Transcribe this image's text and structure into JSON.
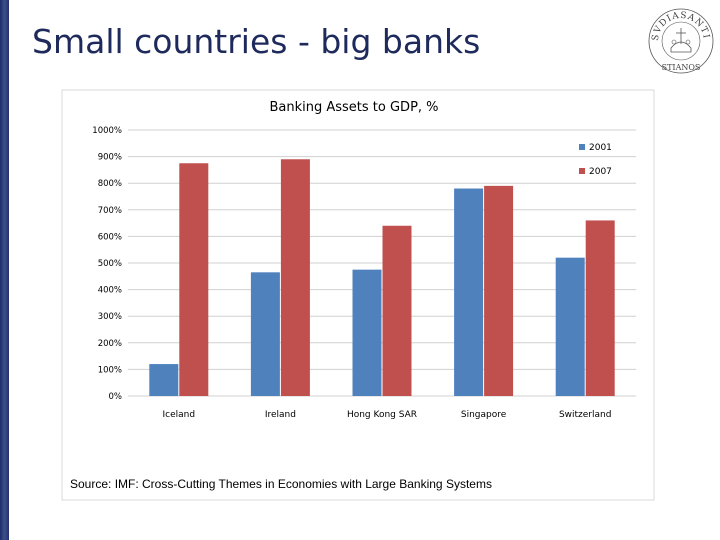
{
  "slide": {
    "title": "Small countries - big banks",
    "logo_text": "SVDIASANTI STIANOS"
  },
  "source_note": "Source: IMF: Cross-Cutting Themes in Economies with Large Banking Systems",
  "chart_data": {
    "type": "bar",
    "title": "Banking Assets to GDP, %",
    "xlabel": "",
    "ylabel": "",
    "categories": [
      "Iceland",
      "Ireland",
      "Hong Kong SAR",
      "Singapore",
      "Switzerland"
    ],
    "series": [
      {
        "name": "2001",
        "color": "#4f81bd",
        "values": [
          120,
          465,
          475,
          780,
          520
        ]
      },
      {
        "name": "2007",
        "color": "#c0504d",
        "values": [
          875,
          890,
          640,
          790,
          660
        ]
      }
    ],
    "ylim": [
      0,
      1000
    ],
    "yticks": [
      0,
      100,
      200,
      300,
      400,
      500,
      600,
      700,
      800,
      900,
      1000
    ],
    "ytick_suffix": "%",
    "grid": true,
    "legend_position": "top-right"
  }
}
